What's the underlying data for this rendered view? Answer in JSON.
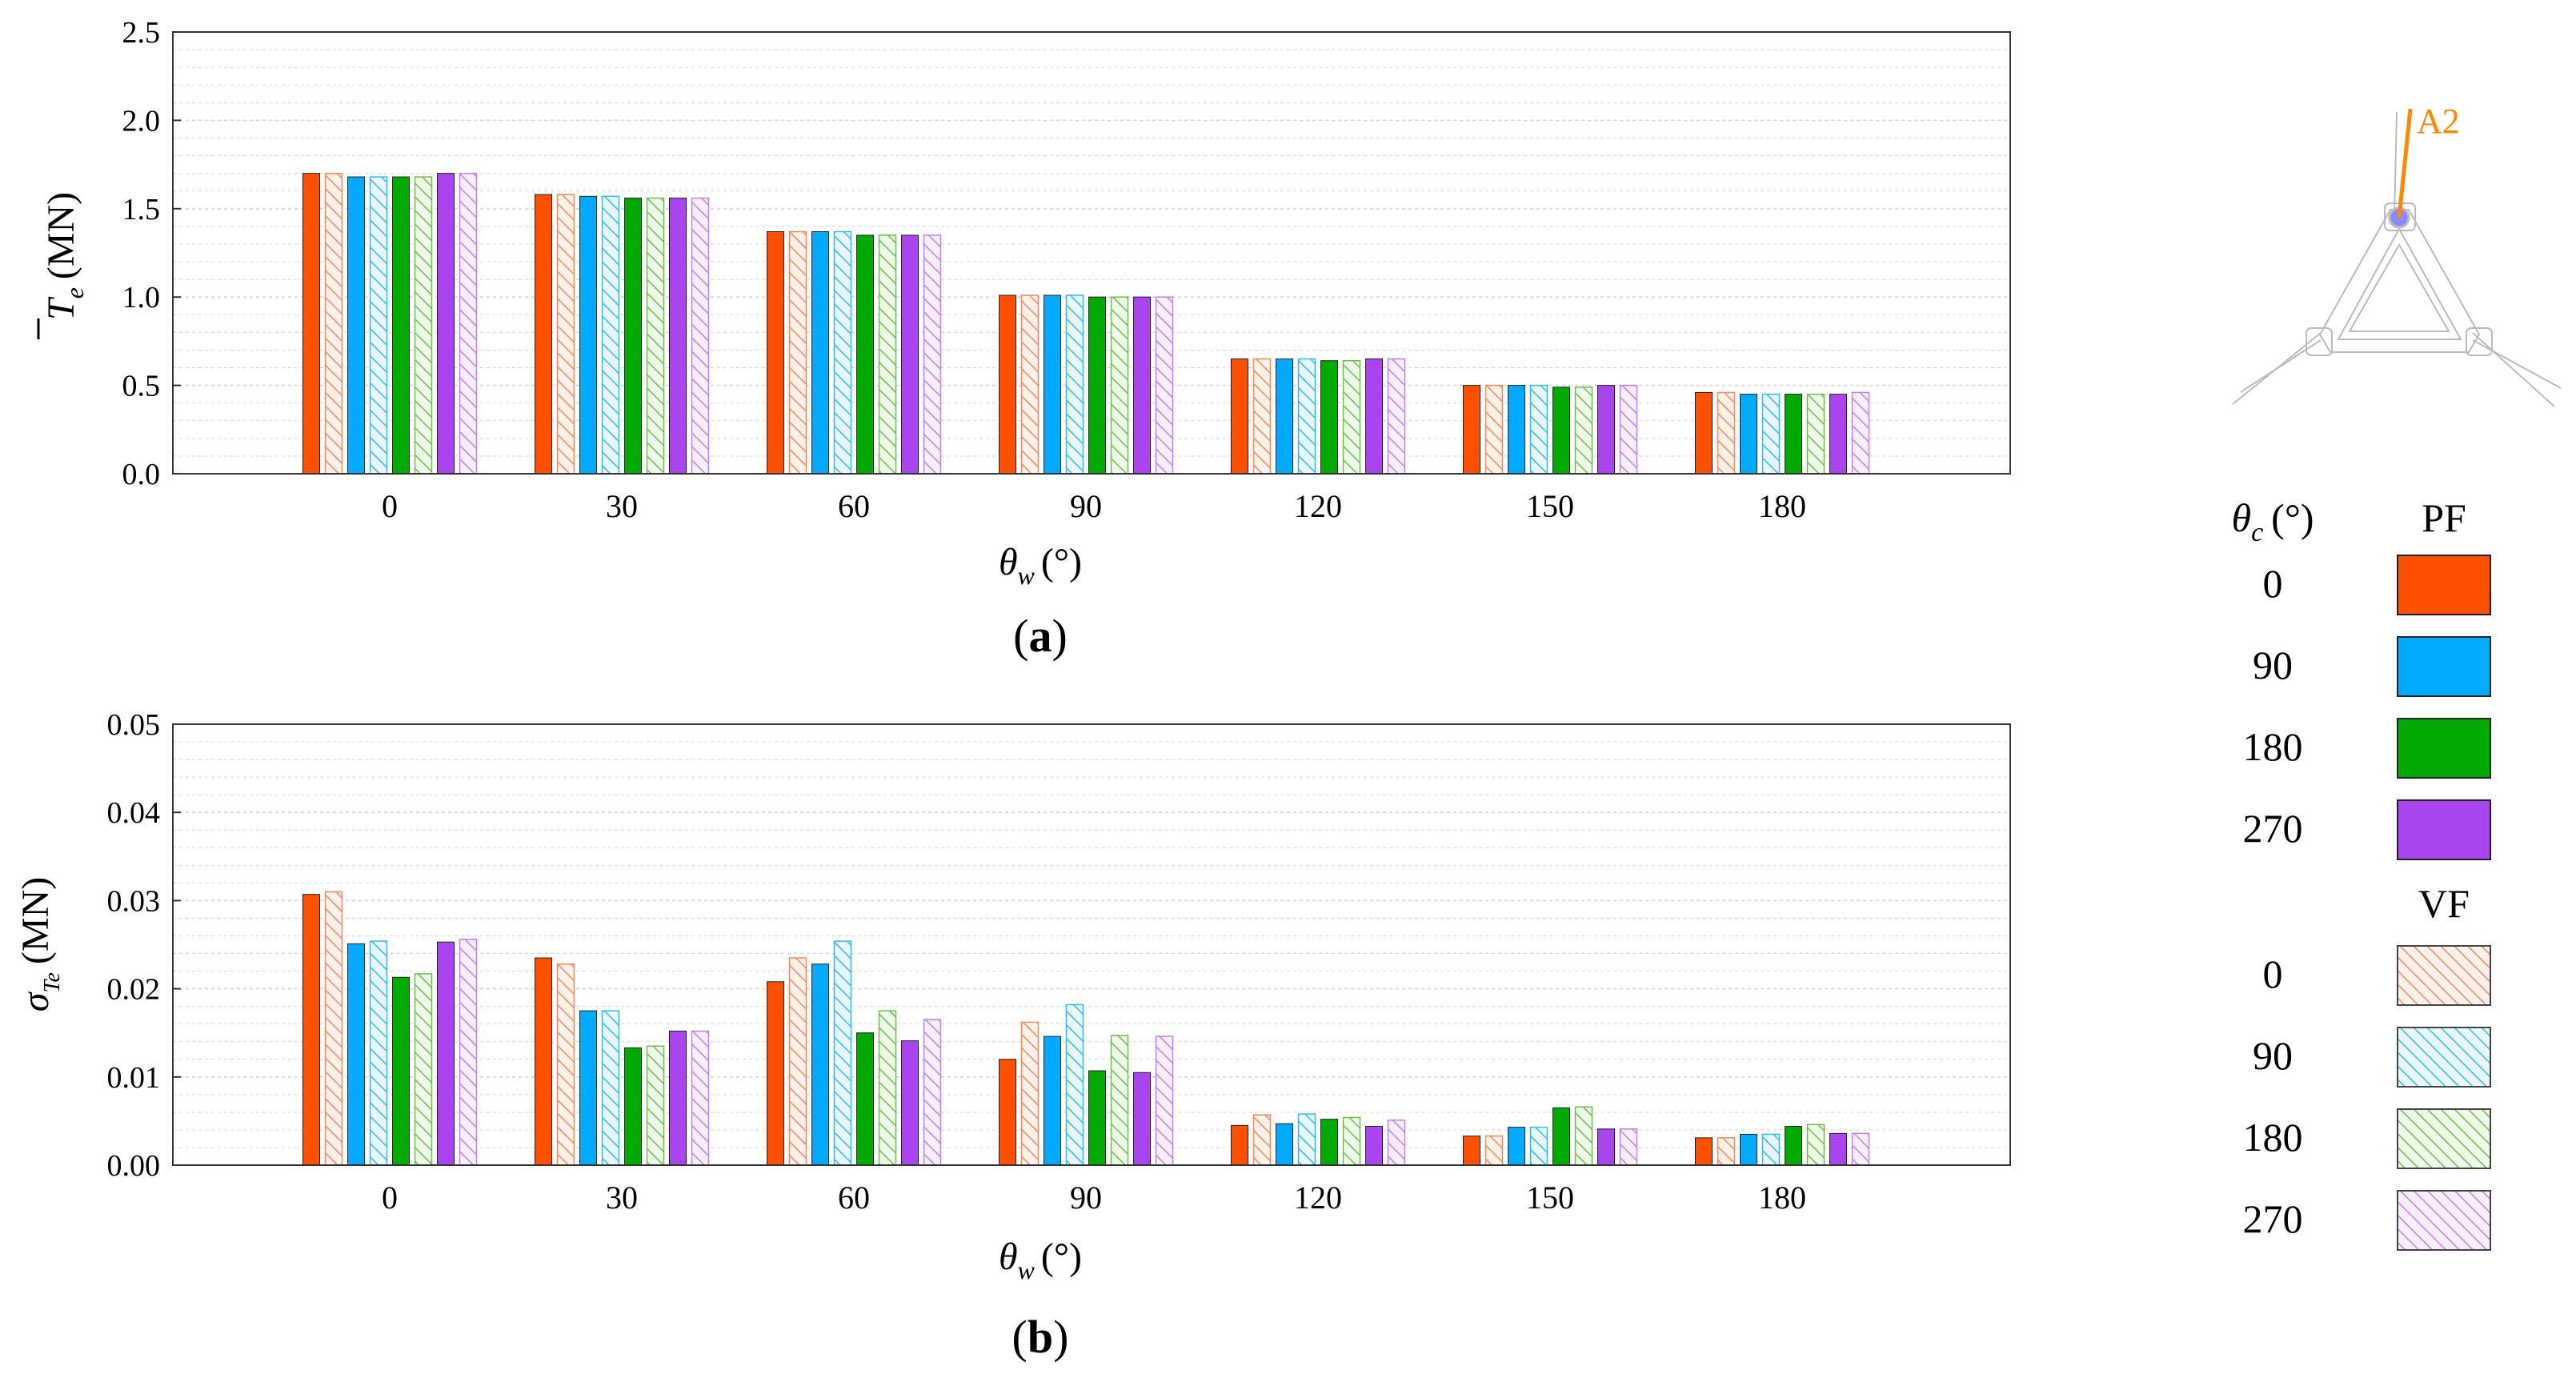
{
  "colors": {
    "pf": [
      "#FF5000",
      "#00AAFF",
      "#00AA00",
      "#AA44EE"
    ],
    "vf": [
      "#F08A5D",
      "#33BBEE",
      "#6CC04A",
      "#C47EEE"
    ],
    "vf_fill": [
      "#FFF1EA",
      "#E8F7FF",
      "#EEF9EA",
      "#F7EEFF"
    ],
    "grid": "#D4D4D4",
    "axis": "#333333",
    "marker": "#FF8800"
  },
  "chart_data": [
    {
      "type": "bar",
      "panel_label": "a",
      "title": "",
      "xlabel_symbol": "θ",
      "xlabel_sub": "w",
      "xlabel_unit": "(°)",
      "ylabel_symbol": "T",
      "ylabel_sub": "e",
      "ylabel_unit": "(MN)",
      "ylabel_overbar": true,
      "ylim": [
        0,
        2.5
      ],
      "yticks": [
        "0.0",
        "0.5",
        "1.0",
        "1.5",
        "2.0",
        "2.5"
      ],
      "categories": [
        "0",
        "30",
        "60",
        "90",
        "120",
        "150",
        "180"
      ],
      "series": [
        {
          "name": "PF 0",
          "values": [
            1.7,
            1.58,
            1.37,
            1.01,
            0.65,
            0.5,
            0.46
          ]
        },
        {
          "name": "VF 0",
          "values": [
            1.7,
            1.58,
            1.37,
            1.01,
            0.65,
            0.5,
            0.46
          ]
        },
        {
          "name": "PF 90",
          "values": [
            1.68,
            1.57,
            1.37,
            1.01,
            0.65,
            0.5,
            0.45
          ]
        },
        {
          "name": "VF 90",
          "values": [
            1.68,
            1.57,
            1.37,
            1.01,
            0.65,
            0.5,
            0.45
          ]
        },
        {
          "name": "PF 180",
          "values": [
            1.68,
            1.56,
            1.35,
            1.0,
            0.64,
            0.49,
            0.45
          ]
        },
        {
          "name": "VF 180",
          "values": [
            1.68,
            1.56,
            1.35,
            1.0,
            0.64,
            0.49,
            0.45
          ]
        },
        {
          "name": "PF 270",
          "values": [
            1.7,
            1.56,
            1.35,
            1.0,
            0.65,
            0.5,
            0.45
          ]
        },
        {
          "name": "VF 270",
          "values": [
            1.7,
            1.56,
            1.35,
            1.0,
            0.65,
            0.5,
            0.46
          ]
        }
      ]
    },
    {
      "type": "bar",
      "panel_label": "b",
      "title": "",
      "xlabel_symbol": "θ",
      "xlabel_sub": "w",
      "xlabel_unit": "(°)",
      "ylabel_symbol": "σ",
      "ylabel_sub": "Te",
      "ylabel_unit": "(MN)",
      "ylabel_overbar": false,
      "ylim": [
        0,
        0.05
      ],
      "yticks": [
        "0.00",
        "0.01",
        "0.02",
        "0.03",
        "0.04",
        "0.05"
      ],
      "categories": [
        "0",
        "30",
        "60",
        "90",
        "120",
        "150",
        "180"
      ],
      "series": [
        {
          "name": "PF 0",
          "values": [
            0.0307,
            0.0235,
            0.0208,
            0.012,
            0.0045,
            0.0033,
            0.0031
          ]
        },
        {
          "name": "VF 0",
          "values": [
            0.031,
            0.0228,
            0.0235,
            0.0162,
            0.0057,
            0.0033,
            0.0031
          ]
        },
        {
          "name": "PF 90",
          "values": [
            0.0251,
            0.0175,
            0.0228,
            0.0146,
            0.0047,
            0.0043,
            0.0035
          ]
        },
        {
          "name": "VF 90",
          "values": [
            0.0254,
            0.0175,
            0.0254,
            0.0182,
            0.0058,
            0.0043,
            0.0035
          ]
        },
        {
          "name": "PF 180",
          "values": [
            0.0213,
            0.0133,
            0.015,
            0.0107,
            0.0052,
            0.0065,
            0.0044
          ]
        },
        {
          "name": "VF 180",
          "values": [
            0.0217,
            0.0135,
            0.0175,
            0.0147,
            0.0054,
            0.0066,
            0.0046
          ]
        },
        {
          "name": "PF 270",
          "values": [
            0.0253,
            0.0152,
            0.0141,
            0.0105,
            0.0044,
            0.0041,
            0.0036
          ]
        },
        {
          "name": "VF 270",
          "values": [
            0.0256,
            0.0152,
            0.0165,
            0.0146,
            0.0051,
            0.0041,
            0.0036
          ]
        }
      ]
    }
  ],
  "legend": {
    "header_symbol": "θ",
    "header_sub": "c",
    "header_unit": "(°)",
    "pf_title": "PF",
    "vf_title": "VF",
    "pf_items": [
      "0",
      "90",
      "180",
      "270"
    ],
    "vf_items": [
      "0",
      "90",
      "180",
      "270"
    ]
  },
  "inset": {
    "marker_label": "A2"
  }
}
